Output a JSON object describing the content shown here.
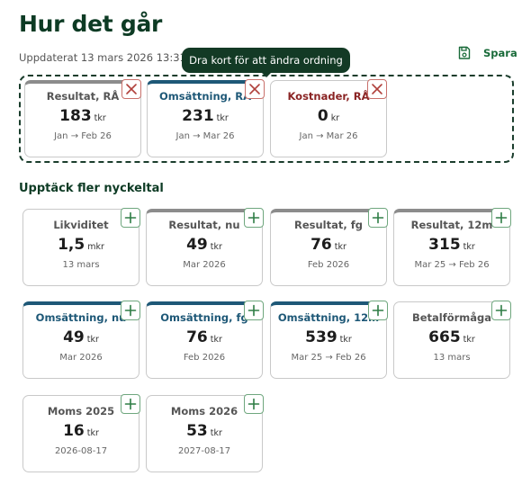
{
  "header": {
    "title": "Hur det går",
    "updated": "Uppdaterat 13 mars 2026 13:31",
    "tooltip": "Dra kort för att ändra ordning",
    "save_label": "Spara"
  },
  "selected_cards": [
    {
      "title": "Resultat, RÅ",
      "value": "183",
      "unit": "tkr",
      "period": "Jan → Feb 26"
    },
    {
      "title": "Omsättning, RÅ",
      "value": "231",
      "unit": "tkr",
      "period": "Jan → Mar 26"
    },
    {
      "title": "Kostnader, RÅ",
      "value": "0",
      "unit": "kr",
      "period": "Jan → Mar 26"
    }
  ],
  "discover": {
    "title": "Upptäck fler nyckeltal",
    "cards": [
      {
        "title": "Likviditet",
        "value": "1,5",
        "unit": "mkr",
        "period": "13 mars"
      },
      {
        "title": "Resultat, nu",
        "value": "49",
        "unit": "tkr",
        "period": "Mar 2026"
      },
      {
        "title": "Resultat, fg",
        "value": "76",
        "unit": "tkr",
        "period": "Feb 2026"
      },
      {
        "title": "Resultat, 12m",
        "value": "315",
        "unit": "tkr",
        "period": "Mar 25 → Feb 26"
      },
      {
        "title": "Omsättning, nu",
        "value": "49",
        "unit": "tkr",
        "period": "Mar 2026"
      },
      {
        "title": "Omsättning, fg",
        "value": "76",
        "unit": "tkr",
        "period": "Feb 2026"
      },
      {
        "title": "Omsättning, 12m",
        "value": "539",
        "unit": "tkr",
        "period": "Mar 25 → Feb 26"
      },
      {
        "title": "Betalförmåga",
        "value": "665",
        "unit": "tkr",
        "period": "13 mars"
      },
      {
        "title": "Moms 2025",
        "value": "16",
        "unit": "tkr",
        "period": "2026-08-17"
      },
      {
        "title": "Moms 2026",
        "value": "53",
        "unit": "tkr",
        "period": "2027-08-17"
      }
    ]
  },
  "colors": {
    "brand_dark": "#0d3b24",
    "accent_green": "#1a6b3a",
    "omsattning_blue": "#1e5877",
    "kostnad_red": "#8a2424",
    "resultat_gray": "#8c8c8c"
  },
  "icons": {
    "save": "floppy-disk-icon",
    "remove": "close-icon",
    "add": "plus-icon"
  }
}
